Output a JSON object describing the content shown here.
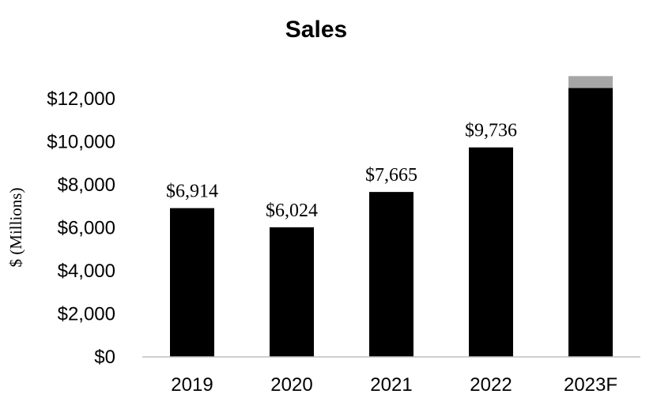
{
  "chart_data": {
    "type": "bar",
    "title": "Sales",
    "xlabel": "",
    "ylabel": "$ (Millions)",
    "categories": [
      "2019",
      "2020",
      "2021",
      "2022",
      "2023F"
    ],
    "series": [
      {
        "values": [
          6914,
          6024,
          7665,
          9736,
          12500
        ],
        "color": "#000000"
      },
      {
        "values": [
          0,
          0,
          0,
          0,
          550
        ],
        "color": "#a6a6a6"
      }
    ],
    "data_labels": [
      "$6,914",
      "$6,024",
      "$7,665",
      "$9,736",
      ""
    ],
    "ylim": [
      0,
      12000
    ],
    "yticks": [
      0,
      2000,
      4000,
      6000,
      8000,
      10000,
      12000
    ],
    "ytick_labels": [
      "$0",
      "$2,000",
      "$4,000",
      "$6,000",
      "$8,000",
      "$10,000",
      "$12,000"
    ],
    "grid": false,
    "legend": "none"
  }
}
